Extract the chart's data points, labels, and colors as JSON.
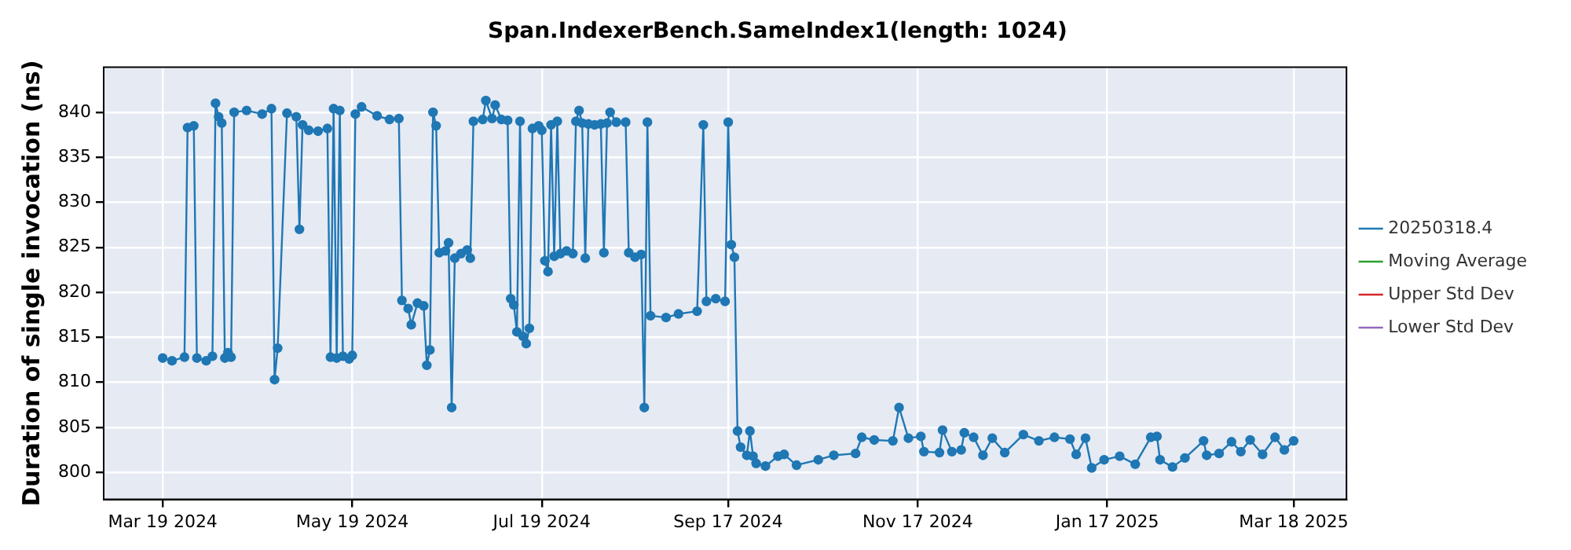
{
  "chart_data": {
    "type": "line",
    "title": "Span.IndexerBench.SameIndex1(length: 1024)",
    "ylabel": "Duration of single invocation (ns)",
    "xlim": [
      "2024-02-29",
      "2025-04-04"
    ],
    "xticks": [
      {
        "value": "2024-03-19",
        "label": "Mar 19 2024"
      },
      {
        "value": "2024-05-19",
        "label": "May 19 2024"
      },
      {
        "value": "2024-07-19",
        "label": "Jul 19 2024"
      },
      {
        "value": "2024-09-17",
        "label": "Sep 17 2024"
      },
      {
        "value": "2024-11-17",
        "label": "Nov 17 2024"
      },
      {
        "value": "2025-01-17",
        "label": "Jan 17 2025"
      },
      {
        "value": "2025-03-18",
        "label": "Mar 18 2025"
      }
    ],
    "ylim": [
      797,
      845
    ],
    "yticks": [
      800,
      805,
      810,
      815,
      820,
      825,
      830,
      835,
      840
    ],
    "grid": true,
    "legend": "right",
    "marker": "circle",
    "line_style": "solid",
    "x": [
      "2024-03-19",
      "2024-03-22",
      "2024-03-26",
      "2024-03-27",
      "2024-03-29",
      "2024-03-30",
      "2024-04-02",
      "2024-04-04",
      "2024-04-05",
      "2024-04-06",
      "2024-04-07",
      "2024-04-08",
      "2024-04-09",
      "2024-04-10",
      "2024-04-11",
      "2024-04-15",
      "2024-04-20",
      "2024-04-23",
      "2024-04-24",
      "2024-04-25",
      "2024-04-28",
      "2024-05-01",
      "2024-05-02",
      "2024-05-03",
      "2024-05-05",
      "2024-05-08",
      "2024-05-11",
      "2024-05-12",
      "2024-05-13",
      "2024-05-14",
      "2024-05-15",
      "2024-05-16",
      "2024-05-18",
      "2024-05-19",
      "2024-05-20",
      "2024-05-22",
      "2024-05-27",
      "2024-05-31",
      "2024-06-03",
      "2024-06-04",
      "2024-06-06",
      "2024-06-07",
      "2024-06-09",
      "2024-06-11",
      "2024-06-12",
      "2024-06-13",
      "2024-06-14",
      "2024-06-15",
      "2024-06-16",
      "2024-06-18",
      "2024-06-19",
      "2024-06-20",
      "2024-06-21",
      "2024-06-23",
      "2024-06-25",
      "2024-06-26",
      "2024-06-27",
      "2024-06-30",
      "2024-07-01",
      "2024-07-03",
      "2024-07-04",
      "2024-07-06",
      "2024-07-08",
      "2024-07-09",
      "2024-07-10",
      "2024-07-11",
      "2024-07-12",
      "2024-07-13",
      "2024-07-14",
      "2024-07-15",
      "2024-07-16",
      "2024-07-18",
      "2024-07-19",
      "2024-07-20",
      "2024-07-21",
      "2024-07-22",
      "2024-07-23",
      "2024-07-24",
      "2024-07-25",
      "2024-07-27",
      "2024-07-29",
      "2024-07-30",
      "2024-07-31",
      "2024-08-01",
      "2024-08-02",
      "2024-08-03",
      "2024-08-05",
      "2024-08-07",
      "2024-08-08",
      "2024-08-09",
      "2024-08-10",
      "2024-08-12",
      "2024-08-15",
      "2024-08-16",
      "2024-08-18",
      "2024-08-20",
      "2024-08-21",
      "2024-08-22",
      "2024-08-23",
      "2024-08-28",
      "2024-09-01",
      "2024-09-07",
      "2024-09-09",
      "2024-09-10",
      "2024-09-13",
      "2024-09-16",
      "2024-09-17",
      "2024-09-18",
      "2024-09-19",
      "2024-09-20",
      "2024-09-21",
      "2024-09-23",
      "2024-09-24",
      "2024-09-25",
      "2024-09-26",
      "2024-09-29",
      "2024-10-03",
      "2024-10-05",
      "2024-10-09",
      "2024-10-16",
      "2024-10-21",
      "2024-10-28",
      "2024-10-30",
      "2024-11-03",
      "2024-11-09",
      "2024-11-11",
      "2024-11-14",
      "2024-11-18",
      "2024-11-19",
      "2024-11-24",
      "2024-11-25",
      "2024-11-28",
      "2024-12-01",
      "2024-12-02",
      "2024-12-05",
      "2024-12-08",
      "2024-12-11",
      "2024-12-15",
      "2024-12-21",
      "2024-12-26",
      "2024-12-31",
      "2025-01-05",
      "2025-01-07",
      "2025-01-10",
      "2025-01-12",
      "2025-01-16",
      "2025-01-21",
      "2025-01-26",
      "2025-01-31",
      "2025-02-02",
      "2025-02-03",
      "2025-02-07",
      "2025-02-11",
      "2025-02-17",
      "2025-02-18",
      "2025-02-22",
      "2025-02-26",
      "2025-03-01",
      "2025-03-04",
      "2025-03-08",
      "2025-03-12",
      "2025-03-15",
      "2025-03-18"
    ],
    "series": [
      {
        "name": "20250318.4",
        "color": "#1f77b4",
        "values": [
          812.7,
          812.4,
          812.8,
          838.3,
          838.5,
          812.7,
          812.4,
          812.9,
          841.0,
          839.5,
          838.8,
          812.7,
          813.3,
          812.8,
          840.0,
          840.2,
          839.8,
          840.4,
          810.3,
          813.8,
          839.9,
          839.5,
          827.0,
          838.6,
          838.0,
          837.9,
          838.2,
          812.8,
          840.4,
          812.7,
          840.2,
          812.9,
          812.6,
          813.0,
          839.8,
          840.6,
          839.6,
          839.2,
          839.3,
          819.1,
          818.2,
          816.4,
          818.8,
          818.5,
          811.9,
          813.6,
          840.0,
          838.5,
          824.4,
          824.6,
          825.5,
          807.2,
          823.8,
          824.3,
          824.7,
          823.8,
          839.0,
          839.2,
          841.3,
          839.3,
          840.8,
          839.2,
          839.1,
          819.3,
          818.6,
          815.6,
          839.0,
          815.1,
          814.3,
          816.0,
          838.2,
          838.5,
          838.0,
          823.5,
          822.3,
          838.6,
          824.0,
          839.0,
          824.3,
          824.6,
          824.3,
          839.0,
          840.2,
          838.8,
          823.8,
          838.7,
          838.6,
          838.7,
          824.4,
          838.8,
          840.0,
          838.9,
          838.9,
          824.4,
          823.9,
          824.2,
          807.2,
          838.9,
          817.4,
          817.2,
          817.6,
          817.9,
          838.6,
          819.0,
          819.3,
          819.0,
          838.9,
          825.3,
          823.9,
          804.6,
          802.8,
          801.9,
          804.6,
          801.8,
          801.0,
          800.7,
          801.8,
          802.0,
          800.8,
          801.4,
          801.9,
          802.1,
          803.9,
          803.6,
          803.5,
          807.2,
          803.8,
          804.0,
          802.3,
          802.2,
          804.7,
          802.3,
          802.5,
          804.4,
          803.9,
          801.9,
          803.8,
          802.2,
          804.2,
          803.5,
          803.9,
          803.7,
          802.0,
          803.8,
          800.5,
          801.4,
          801.8,
          800.9,
          803.9,
          804.0,
          801.4,
          800.6,
          801.6,
          803.5,
          801.9,
          802.1,
          803.4,
          802.3,
          803.6,
          802.0,
          803.9,
          802.5,
          803.5
        ]
      },
      {
        "name": "Moving Average",
        "color": "#2ca02c",
        "values": [
          null,
          null,
          null,
          null,
          null,
          null,
          null,
          null,
          null,
          null,
          null,
          null,
          null,
          null,
          null,
          null,
          null,
          null,
          null,
          null,
          null,
          null,
          null,
          null,
          null,
          null,
          null,
          null,
          null,
          null,
          null,
          null,
          null,
          null,
          null,
          null,
          null,
          null,
          null,
          null,
          null,
          null,
          null,
          null,
          null,
          null,
          null,
          null,
          null,
          null,
          null,
          null,
          null,
          null,
          null,
          null,
          null,
          null,
          null,
          null,
          null,
          null,
          null,
          null,
          null,
          null,
          null,
          null,
          null,
          null,
          null,
          null,
          null,
          null,
          null,
          null,
          null,
          null,
          null,
          null,
          null,
          null,
          null,
          null,
          null,
          null,
          null,
          null,
          null,
          null,
          null,
          null,
          null,
          null,
          null,
          null,
          null,
          null,
          null,
          null,
          null,
          null,
          null,
          null,
          null,
          null,
          null,
          null,
          null,
          null,
          null,
          null,
          null,
          null,
          null,
          null,
          null,
          null,
          null,
          null,
          null,
          null,
          null,
          null,
          null,
          null,
          null,
          null,
          null,
          null,
          null,
          null,
          null,
          null,
          null,
          null,
          null,
          null,
          null,
          null,
          null,
          null,
          null,
          null,
          null,
          null,
          null,
          null,
          null,
          null,
          null,
          null,
          null,
          null,
          null,
          null,
          null,
          null,
          null,
          null,
          null,
          null,
          null
        ]
      },
      {
        "name": "Upper Std Dev",
        "color": "#d62728",
        "values": [
          null,
          null,
          null,
          null,
          null,
          null,
          null,
          null,
          null,
          null,
          null,
          null,
          null,
          null,
          null,
          null,
          null,
          null,
          null,
          null,
          null,
          null,
          null,
          null,
          null,
          null,
          null,
          null,
          null,
          null,
          null,
          null,
          null,
          null,
          null,
          null,
          null,
          null,
          null,
          null,
          null,
          null,
          null,
          null,
          null,
          null,
          null,
          null,
          null,
          null,
          null,
          null,
          null,
          null,
          null,
          null,
          null,
          null,
          null,
          null,
          null,
          null,
          null,
          null,
          null,
          null,
          null,
          null,
          null,
          null,
          null,
          null,
          null,
          null,
          null,
          null,
          null,
          null,
          null,
          null,
          null,
          null,
          null,
          null,
          null,
          null,
          null,
          null,
          null,
          null,
          null,
          null,
          null,
          null,
          null,
          null,
          null,
          null,
          null,
          null,
          null,
          null,
          null,
          null,
          null,
          null,
          null,
          null,
          null,
          null,
          null,
          null,
          null,
          null,
          null,
          null,
          null,
          null,
          null,
          null,
          null,
          null,
          null,
          null,
          null,
          null,
          null,
          null,
          null,
          null,
          null,
          null,
          null,
          null,
          null,
          null,
          null,
          null,
          null,
          null,
          null,
          null,
          null,
          null,
          null,
          null,
          null,
          null,
          null,
          null,
          null,
          null,
          null,
          null,
          null,
          null,
          null,
          null,
          null,
          null,
          null,
          null,
          null
        ]
      },
      {
        "name": "Lower Std Dev",
        "color": "#9467bd",
        "values": [
          null,
          null,
          null,
          null,
          null,
          null,
          null,
          null,
          null,
          null,
          null,
          null,
          null,
          null,
          null,
          null,
          null,
          null,
          null,
          null,
          null,
          null,
          null,
          null,
          null,
          null,
          null,
          null,
          null,
          null,
          null,
          null,
          null,
          null,
          null,
          null,
          null,
          null,
          null,
          null,
          null,
          null,
          null,
          null,
          null,
          null,
          null,
          null,
          null,
          null,
          null,
          null,
          null,
          null,
          null,
          null,
          null,
          null,
          null,
          null,
          null,
          null,
          null,
          null,
          null,
          null,
          null,
          null,
          null,
          null,
          null,
          null,
          null,
          null,
          null,
          null,
          null,
          null,
          null,
          null,
          null,
          null,
          null,
          null,
          null,
          null,
          null,
          null,
          null,
          null,
          null,
          null,
          null,
          null,
          null,
          null,
          null,
          null,
          null,
          null,
          null,
          null,
          null,
          null,
          null,
          null,
          null,
          null,
          null,
          null,
          null,
          null,
          null,
          null,
          null,
          null,
          null,
          null,
          null,
          null,
          null,
          null,
          null,
          null,
          null,
          null,
          null,
          null,
          null,
          null,
          null,
          null,
          null,
          null,
          null,
          null,
          null,
          null,
          null,
          null,
          null,
          null,
          null,
          null,
          null,
          null,
          null,
          null,
          null,
          null,
          null,
          null,
          null,
          null,
          null,
          null,
          null,
          null,
          null,
          null,
          null,
          null,
          null
        ]
      }
    ]
  }
}
